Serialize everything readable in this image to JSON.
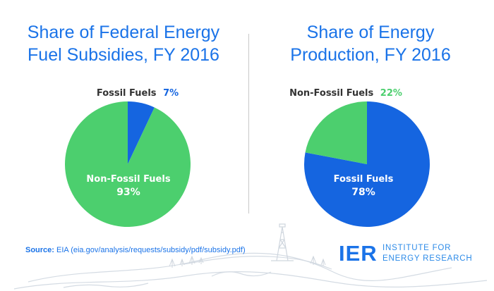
{
  "chart_data": [
    {
      "type": "pie",
      "title_line1": "Share of Federal Energy",
      "title_line2": "Fuel Subsidies, FY 2016",
      "slices": [
        {
          "label": "Fossil Fuels",
          "value": 7,
          "display": "7%",
          "color": "#1565e0"
        },
        {
          "label": "Non-Fossil Fuels",
          "value": 93,
          "display": "93%",
          "color": "#4ccf6e"
        }
      ]
    },
    {
      "type": "pie",
      "title_line1": "Share of Energy",
      "title_line2": "Production, FY 2016",
      "slices": [
        {
          "label": "Fossil Fuels",
          "value": 78,
          "display": "78%",
          "color": "#1565e0"
        },
        {
          "label": "Non-Fossil Fuels",
          "value": 22,
          "display": "22%",
          "color": "#4ccf6e"
        }
      ]
    }
  ],
  "source": {
    "label": "Source:",
    "text": "EIA (eia.gov/analysis/requests/subsidy/pdf/subsidy.pdf)"
  },
  "logo": {
    "mark": "IER",
    "line1": "INSTITUTE FOR",
    "line2": "ENERGY RESEARCH",
    "icon": "oil-derrick-icon"
  },
  "colors": {
    "brand_blue": "#1a73e8",
    "fossil": "#1565e0",
    "non_fossil": "#4ccf6e",
    "label_dark": "#333333",
    "label_white": "#ffffff"
  }
}
